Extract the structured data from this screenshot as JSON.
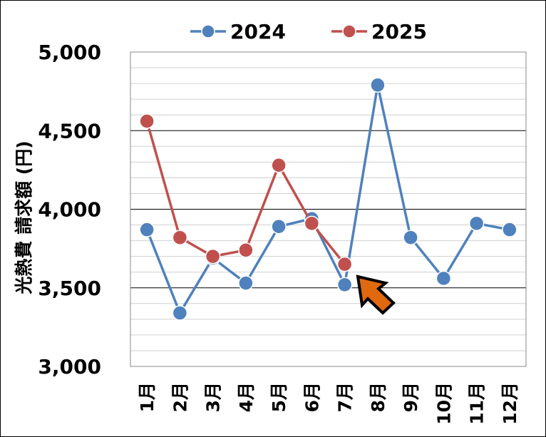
{
  "chart_data": {
    "type": "line",
    "title": "",
    "xlabel": "",
    "ylabel": "光熱費 請求額 (円)",
    "categories": [
      "1月",
      "2月",
      "3月",
      "4月",
      "5月",
      "6月",
      "7月",
      "8月",
      "9月",
      "10月",
      "11月",
      "12月"
    ],
    "ylim": [
      3000,
      5000
    ],
    "y_ticks": [
      3000,
      3500,
      4000,
      4500,
      5000
    ],
    "y_tick_labels": [
      "3,000",
      "3,500",
      "4,000",
      "4,500",
      "5,000"
    ],
    "major_grid_step": 500,
    "minor_grid_step": 100,
    "grid": true,
    "legend_position": "top",
    "series": [
      {
        "name": "2024",
        "color": "#4f81bd",
        "values": [
          3870,
          3340,
          3690,
          3530,
          3890,
          3940,
          3520,
          4790,
          3820,
          3560,
          3910,
          3870
        ]
      },
      {
        "name": "2025",
        "color": "#c0504d",
        "values": [
          4560,
          3820,
          3700,
          3740,
          4280,
          3910,
          3650,
          null,
          null,
          null,
          null,
          null
        ]
      }
    ],
    "annotation": {
      "type": "arrow",
      "points_to": "7月",
      "color": "#e0690f",
      "outline": "#000000"
    }
  }
}
